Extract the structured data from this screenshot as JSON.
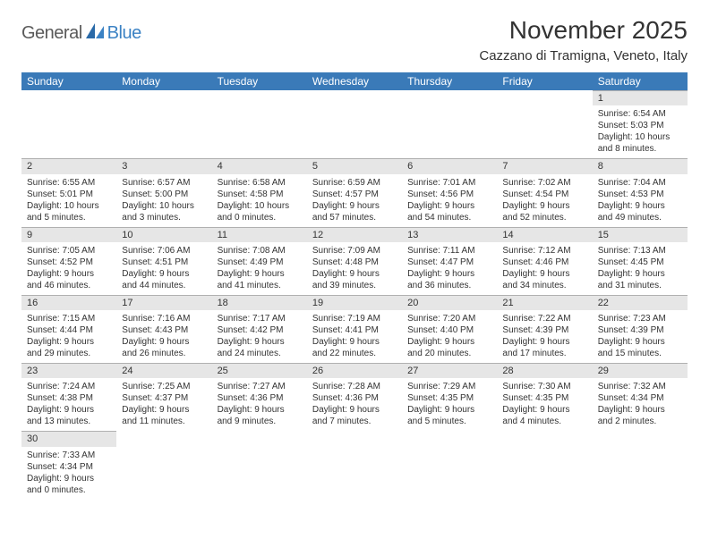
{
  "logo": {
    "general": "General",
    "blue": "Blue"
  },
  "title": "November 2025",
  "location": "Cazzano di Tramigna, Veneto, Italy",
  "colors": {
    "header_bg": "#3a7ab8",
    "header_fg": "#ffffff",
    "daynum_bg": "#e6e6e6",
    "row_divider": "#3a7ab8",
    "text": "#333333",
    "logo_gray": "#5a5a5a",
    "logo_blue": "#3b82c4",
    "background": "#ffffff"
  },
  "typography": {
    "title_fontsize": 28,
    "location_fontsize": 15,
    "header_fontsize": 12,
    "daynum_fontsize": 11,
    "body_fontsize": 10
  },
  "weekdays": [
    "Sunday",
    "Monday",
    "Tuesday",
    "Wednesday",
    "Thursday",
    "Friday",
    "Saturday"
  ],
  "weeks": [
    [
      null,
      null,
      null,
      null,
      null,
      null,
      {
        "day": "1",
        "sunrise": "Sunrise: 6:54 AM",
        "sunset": "Sunset: 5:03 PM",
        "dl1": "Daylight: 10 hours",
        "dl2": "and 8 minutes."
      }
    ],
    [
      {
        "day": "2",
        "sunrise": "Sunrise: 6:55 AM",
        "sunset": "Sunset: 5:01 PM",
        "dl1": "Daylight: 10 hours",
        "dl2": "and 5 minutes."
      },
      {
        "day": "3",
        "sunrise": "Sunrise: 6:57 AM",
        "sunset": "Sunset: 5:00 PM",
        "dl1": "Daylight: 10 hours",
        "dl2": "and 3 minutes."
      },
      {
        "day": "4",
        "sunrise": "Sunrise: 6:58 AM",
        "sunset": "Sunset: 4:58 PM",
        "dl1": "Daylight: 10 hours",
        "dl2": "and 0 minutes."
      },
      {
        "day": "5",
        "sunrise": "Sunrise: 6:59 AM",
        "sunset": "Sunset: 4:57 PM",
        "dl1": "Daylight: 9 hours",
        "dl2": "and 57 minutes."
      },
      {
        "day": "6",
        "sunrise": "Sunrise: 7:01 AM",
        "sunset": "Sunset: 4:56 PM",
        "dl1": "Daylight: 9 hours",
        "dl2": "and 54 minutes."
      },
      {
        "day": "7",
        "sunrise": "Sunrise: 7:02 AM",
        "sunset": "Sunset: 4:54 PM",
        "dl1": "Daylight: 9 hours",
        "dl2": "and 52 minutes."
      },
      {
        "day": "8",
        "sunrise": "Sunrise: 7:04 AM",
        "sunset": "Sunset: 4:53 PM",
        "dl1": "Daylight: 9 hours",
        "dl2": "and 49 minutes."
      }
    ],
    [
      {
        "day": "9",
        "sunrise": "Sunrise: 7:05 AM",
        "sunset": "Sunset: 4:52 PM",
        "dl1": "Daylight: 9 hours",
        "dl2": "and 46 minutes."
      },
      {
        "day": "10",
        "sunrise": "Sunrise: 7:06 AM",
        "sunset": "Sunset: 4:51 PM",
        "dl1": "Daylight: 9 hours",
        "dl2": "and 44 minutes."
      },
      {
        "day": "11",
        "sunrise": "Sunrise: 7:08 AM",
        "sunset": "Sunset: 4:49 PM",
        "dl1": "Daylight: 9 hours",
        "dl2": "and 41 minutes."
      },
      {
        "day": "12",
        "sunrise": "Sunrise: 7:09 AM",
        "sunset": "Sunset: 4:48 PM",
        "dl1": "Daylight: 9 hours",
        "dl2": "and 39 minutes."
      },
      {
        "day": "13",
        "sunrise": "Sunrise: 7:11 AM",
        "sunset": "Sunset: 4:47 PM",
        "dl1": "Daylight: 9 hours",
        "dl2": "and 36 minutes."
      },
      {
        "day": "14",
        "sunrise": "Sunrise: 7:12 AM",
        "sunset": "Sunset: 4:46 PM",
        "dl1": "Daylight: 9 hours",
        "dl2": "and 34 minutes."
      },
      {
        "day": "15",
        "sunrise": "Sunrise: 7:13 AM",
        "sunset": "Sunset: 4:45 PM",
        "dl1": "Daylight: 9 hours",
        "dl2": "and 31 minutes."
      }
    ],
    [
      {
        "day": "16",
        "sunrise": "Sunrise: 7:15 AM",
        "sunset": "Sunset: 4:44 PM",
        "dl1": "Daylight: 9 hours",
        "dl2": "and 29 minutes."
      },
      {
        "day": "17",
        "sunrise": "Sunrise: 7:16 AM",
        "sunset": "Sunset: 4:43 PM",
        "dl1": "Daylight: 9 hours",
        "dl2": "and 26 minutes."
      },
      {
        "day": "18",
        "sunrise": "Sunrise: 7:17 AM",
        "sunset": "Sunset: 4:42 PM",
        "dl1": "Daylight: 9 hours",
        "dl2": "and 24 minutes."
      },
      {
        "day": "19",
        "sunrise": "Sunrise: 7:19 AM",
        "sunset": "Sunset: 4:41 PM",
        "dl1": "Daylight: 9 hours",
        "dl2": "and 22 minutes."
      },
      {
        "day": "20",
        "sunrise": "Sunrise: 7:20 AM",
        "sunset": "Sunset: 4:40 PM",
        "dl1": "Daylight: 9 hours",
        "dl2": "and 20 minutes."
      },
      {
        "day": "21",
        "sunrise": "Sunrise: 7:22 AM",
        "sunset": "Sunset: 4:39 PM",
        "dl1": "Daylight: 9 hours",
        "dl2": "and 17 minutes."
      },
      {
        "day": "22",
        "sunrise": "Sunrise: 7:23 AM",
        "sunset": "Sunset: 4:39 PM",
        "dl1": "Daylight: 9 hours",
        "dl2": "and 15 minutes."
      }
    ],
    [
      {
        "day": "23",
        "sunrise": "Sunrise: 7:24 AM",
        "sunset": "Sunset: 4:38 PM",
        "dl1": "Daylight: 9 hours",
        "dl2": "and 13 minutes."
      },
      {
        "day": "24",
        "sunrise": "Sunrise: 7:25 AM",
        "sunset": "Sunset: 4:37 PM",
        "dl1": "Daylight: 9 hours",
        "dl2": "and 11 minutes."
      },
      {
        "day": "25",
        "sunrise": "Sunrise: 7:27 AM",
        "sunset": "Sunset: 4:36 PM",
        "dl1": "Daylight: 9 hours",
        "dl2": "and 9 minutes."
      },
      {
        "day": "26",
        "sunrise": "Sunrise: 7:28 AM",
        "sunset": "Sunset: 4:36 PM",
        "dl1": "Daylight: 9 hours",
        "dl2": "and 7 minutes."
      },
      {
        "day": "27",
        "sunrise": "Sunrise: 7:29 AM",
        "sunset": "Sunset: 4:35 PM",
        "dl1": "Daylight: 9 hours",
        "dl2": "and 5 minutes."
      },
      {
        "day": "28",
        "sunrise": "Sunrise: 7:30 AM",
        "sunset": "Sunset: 4:35 PM",
        "dl1": "Daylight: 9 hours",
        "dl2": "and 4 minutes."
      },
      {
        "day": "29",
        "sunrise": "Sunrise: 7:32 AM",
        "sunset": "Sunset: 4:34 PM",
        "dl1": "Daylight: 9 hours",
        "dl2": "and 2 minutes."
      }
    ],
    [
      {
        "day": "30",
        "sunrise": "Sunrise: 7:33 AM",
        "sunset": "Sunset: 4:34 PM",
        "dl1": "Daylight: 9 hours",
        "dl2": "and 0 minutes."
      },
      null,
      null,
      null,
      null,
      null,
      null
    ]
  ]
}
